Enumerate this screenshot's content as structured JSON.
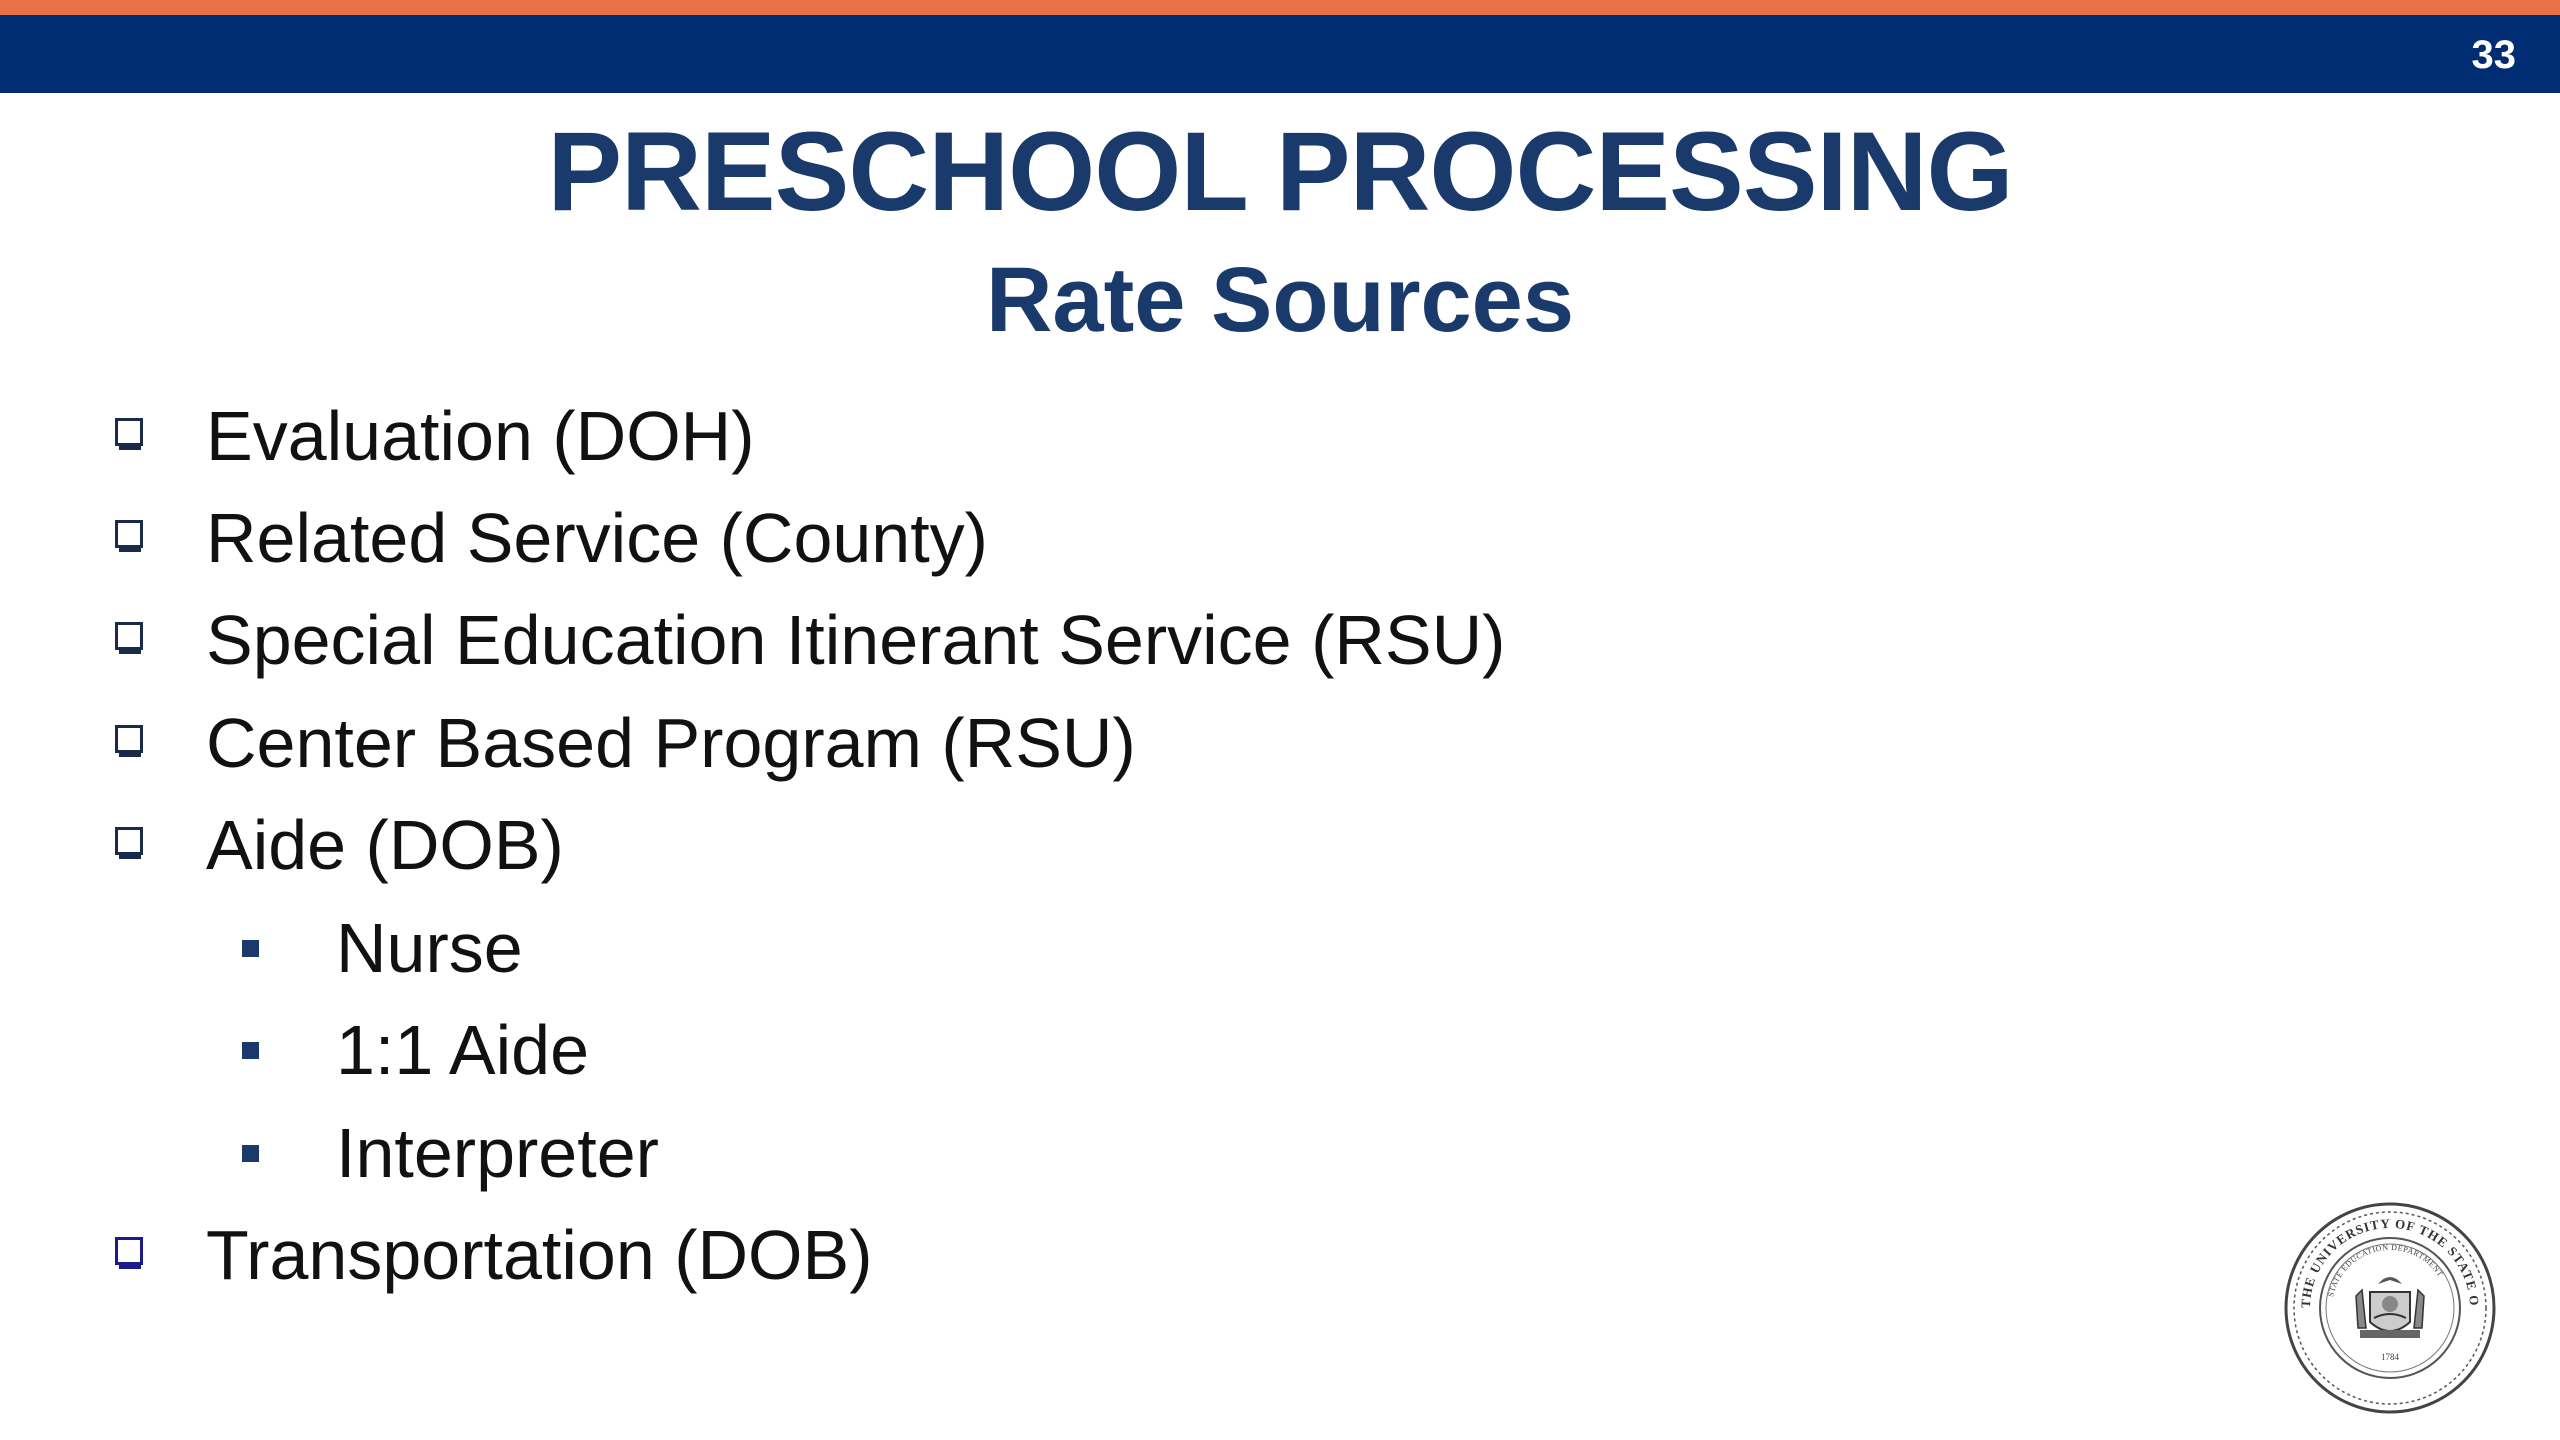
{
  "header": {
    "page_number": "33"
  },
  "title": "PRESCHOOL PROCESSING",
  "subtitle": "Rate Sources",
  "bullets": [
    {
      "label": "Evaluation (DOH)",
      "icon": "checkbox-icon"
    },
    {
      "label": "Related Service (County)",
      "icon": "checkbox-icon"
    },
    {
      "label": "Special Education Itinerant Service (RSU)",
      "icon": "checkbox-icon"
    },
    {
      "label": "Center Based Program (RSU)",
      "icon": "checkbox-icon"
    },
    {
      "label": "Aide (DOB)",
      "icon": "checkbox-icon"
    },
    {
      "label": "Nurse",
      "icon": "square-bullet-icon"
    },
    {
      "label": "1:1 Aide",
      "icon": "square-bullet-icon"
    },
    {
      "label": "Interpreter",
      "icon": "square-bullet-icon"
    },
    {
      "label": "Transportation (DOB)",
      "icon": "checkbox-icon"
    }
  ],
  "colors": {
    "accent_orange": "#e8714a",
    "brand_navy": "#002c73",
    "title_navy": "#1a3a6b",
    "checkbox_dark": "#1a2a4a",
    "checkbox_last": "#1a1a8c"
  },
  "seal": {
    "icon": "state-seal-icon",
    "text_top": "THE UNIVERSITY OF THE STATE OF NEW YORK",
    "text_inner": "STATE EDUCATION DEPARTMENT",
    "year": "1784"
  }
}
